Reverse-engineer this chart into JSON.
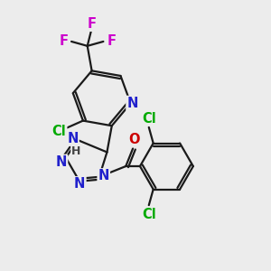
{
  "bg_color": "#ececec",
  "bond_color": "#1a1a1a",
  "bond_width": 1.6,
  "atom_colors": {
    "N": "#2020cc",
    "Cl": "#00aa00",
    "F": "#cc00cc",
    "O": "#cc0000",
    "H": "#444444"
  },
  "font_size": 10.5
}
